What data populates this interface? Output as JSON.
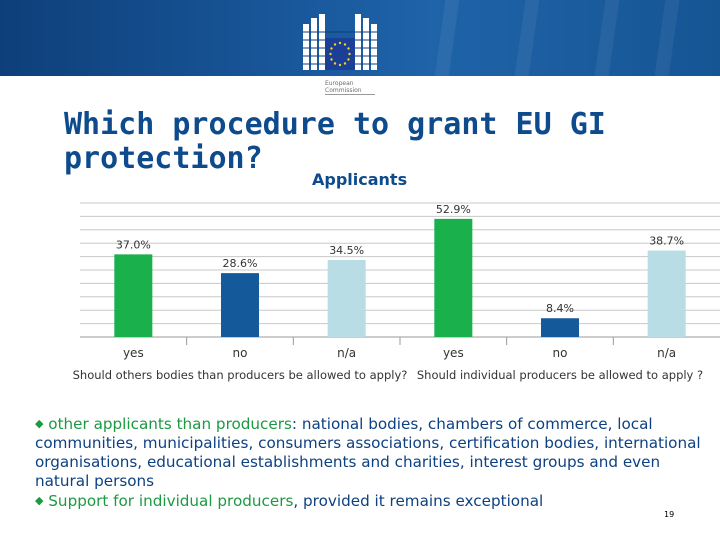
{
  "header": {
    "logo_line1": "European",
    "logo_line2": "Commission",
    "colors": {
      "banner": "#1a5a9e",
      "flag": "#1b3f94",
      "stars": "#f2d21c"
    }
  },
  "title": "Which procedure to grant EU GI protection?",
  "subtitle": "Applicants",
  "chart_data": {
    "type": "bar",
    "categories": [
      "yes",
      "no",
      "n/a",
      "yes",
      "no",
      "n/a"
    ],
    "values": [
      37.0,
      28.6,
      34.5,
      52.9,
      8.4,
      38.7
    ],
    "value_labels": [
      "37.0%",
      "28.6%",
      "34.5%",
      "52.9%",
      "8.4%",
      "38.7%"
    ],
    "groups": [
      "Should others bodies than producers be allowed to apply?",
      "Should individual producers be allowed to apply ?"
    ],
    "bar_colors": [
      "#1ab04b",
      "#14599a",
      "#b8dde4",
      "#1ab04b",
      "#14599a",
      "#b8dde4"
    ],
    "ylim": [
      0,
      60
    ],
    "grid": true
  },
  "bullets": [
    {
      "lead": "other applicants than producers",
      "rest": ": national bodies, chambers of commerce, local communities, municipalities, consumers associations, certification bodies, international organisations, educational establishments and charities, interest groups and even natural persons"
    },
    {
      "lead": "Support for individual producers",
      "rest": ", provided it remains exceptional"
    }
  ],
  "page_number": "19"
}
